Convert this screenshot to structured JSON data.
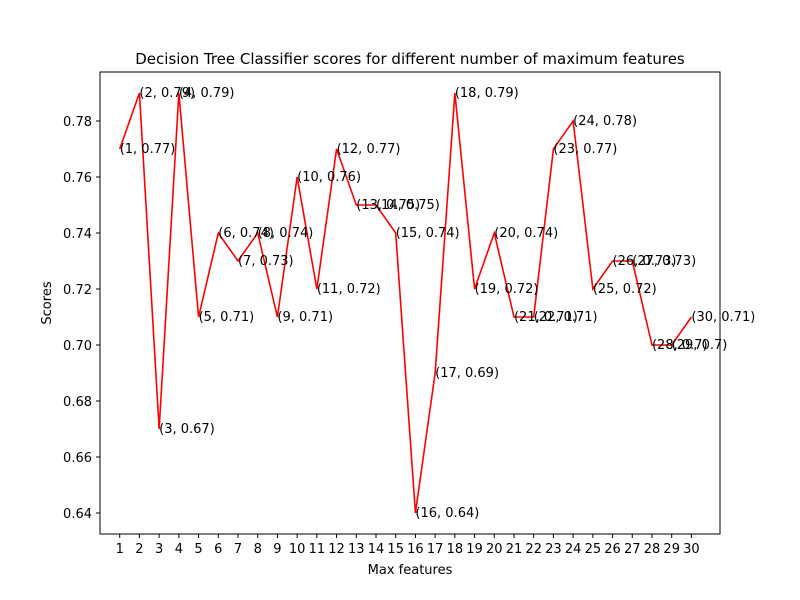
{
  "chart_data": {
    "type": "line",
    "title": "Decision Tree Classifier scores for different number of maximum features",
    "xlabel": "Max features",
    "ylabel": "Scores",
    "x": [
      1,
      2,
      3,
      4,
      5,
      6,
      7,
      8,
      9,
      10,
      11,
      12,
      13,
      14,
      15,
      16,
      17,
      18,
      19,
      20,
      21,
      22,
      23,
      24,
      25,
      26,
      27,
      28,
      29,
      30
    ],
    "series": [
      {
        "values": [
          0.77,
          0.79,
          0.67,
          0.79,
          0.71,
          0.74,
          0.73,
          0.74,
          0.71,
          0.76,
          0.72,
          0.77,
          0.75,
          0.75,
          0.74,
          0.64,
          0.69,
          0.79,
          0.72,
          0.74,
          0.71,
          0.71,
          0.77,
          0.78,
          0.72,
          0.73,
          0.73,
          0.7,
          0.7,
          0.71
        ],
        "color": "#ff0000"
      }
    ],
    "point_labels": [
      "(1, 0.77)",
      "(2, 0.79)",
      "(3, 0.67)",
      "(4, 0.79)",
      "(5, 0.71)",
      "(6, 0.74)",
      "(7, 0.73)",
      "(8, 0.74)",
      "(9, 0.71)",
      "(10, 0.76)",
      "(11, 0.72)",
      "(12, 0.77)",
      "(13, 0.75)",
      "(14, 0.75)",
      "(15, 0.74)",
      "(16, 0.64)",
      "(17, 0.69)",
      "(18, 0.79)",
      "(19, 0.72)",
      "(20, 0.74)",
      "(21, 0.71)",
      "(22, 0.71)",
      "(23, 0.77)",
      "(24, 0.78)",
      "(25, 0.72)",
      "(26, 0.73)",
      "(27, 0.73)",
      "(28, 0.7)",
      "(29, 0.7)",
      "(30, 0.71)"
    ],
    "x_ticks": [
      "1",
      "2",
      "3",
      "4",
      "5",
      "6",
      "7",
      "8",
      "9",
      "10",
      "11",
      "12",
      "13",
      "14",
      "15",
      "16",
      "17",
      "18",
      "19",
      "20",
      "21",
      "22",
      "23",
      "24",
      "25",
      "26",
      "27",
      "28",
      "29",
      "30"
    ],
    "y_ticks": [
      0.64,
      0.66,
      0.68,
      0.7,
      0.72,
      0.74,
      0.76,
      0.78
    ],
    "y_tick_labels": [
      "0.64",
      "0.66",
      "0.68",
      "0.70",
      "0.72",
      "0.74",
      "0.76",
      "0.78"
    ],
    "xlim": [
      0,
      31.45
    ],
    "ylim": [
      0.6325,
      0.7975
    ],
    "grid": false,
    "legend": "none"
  }
}
